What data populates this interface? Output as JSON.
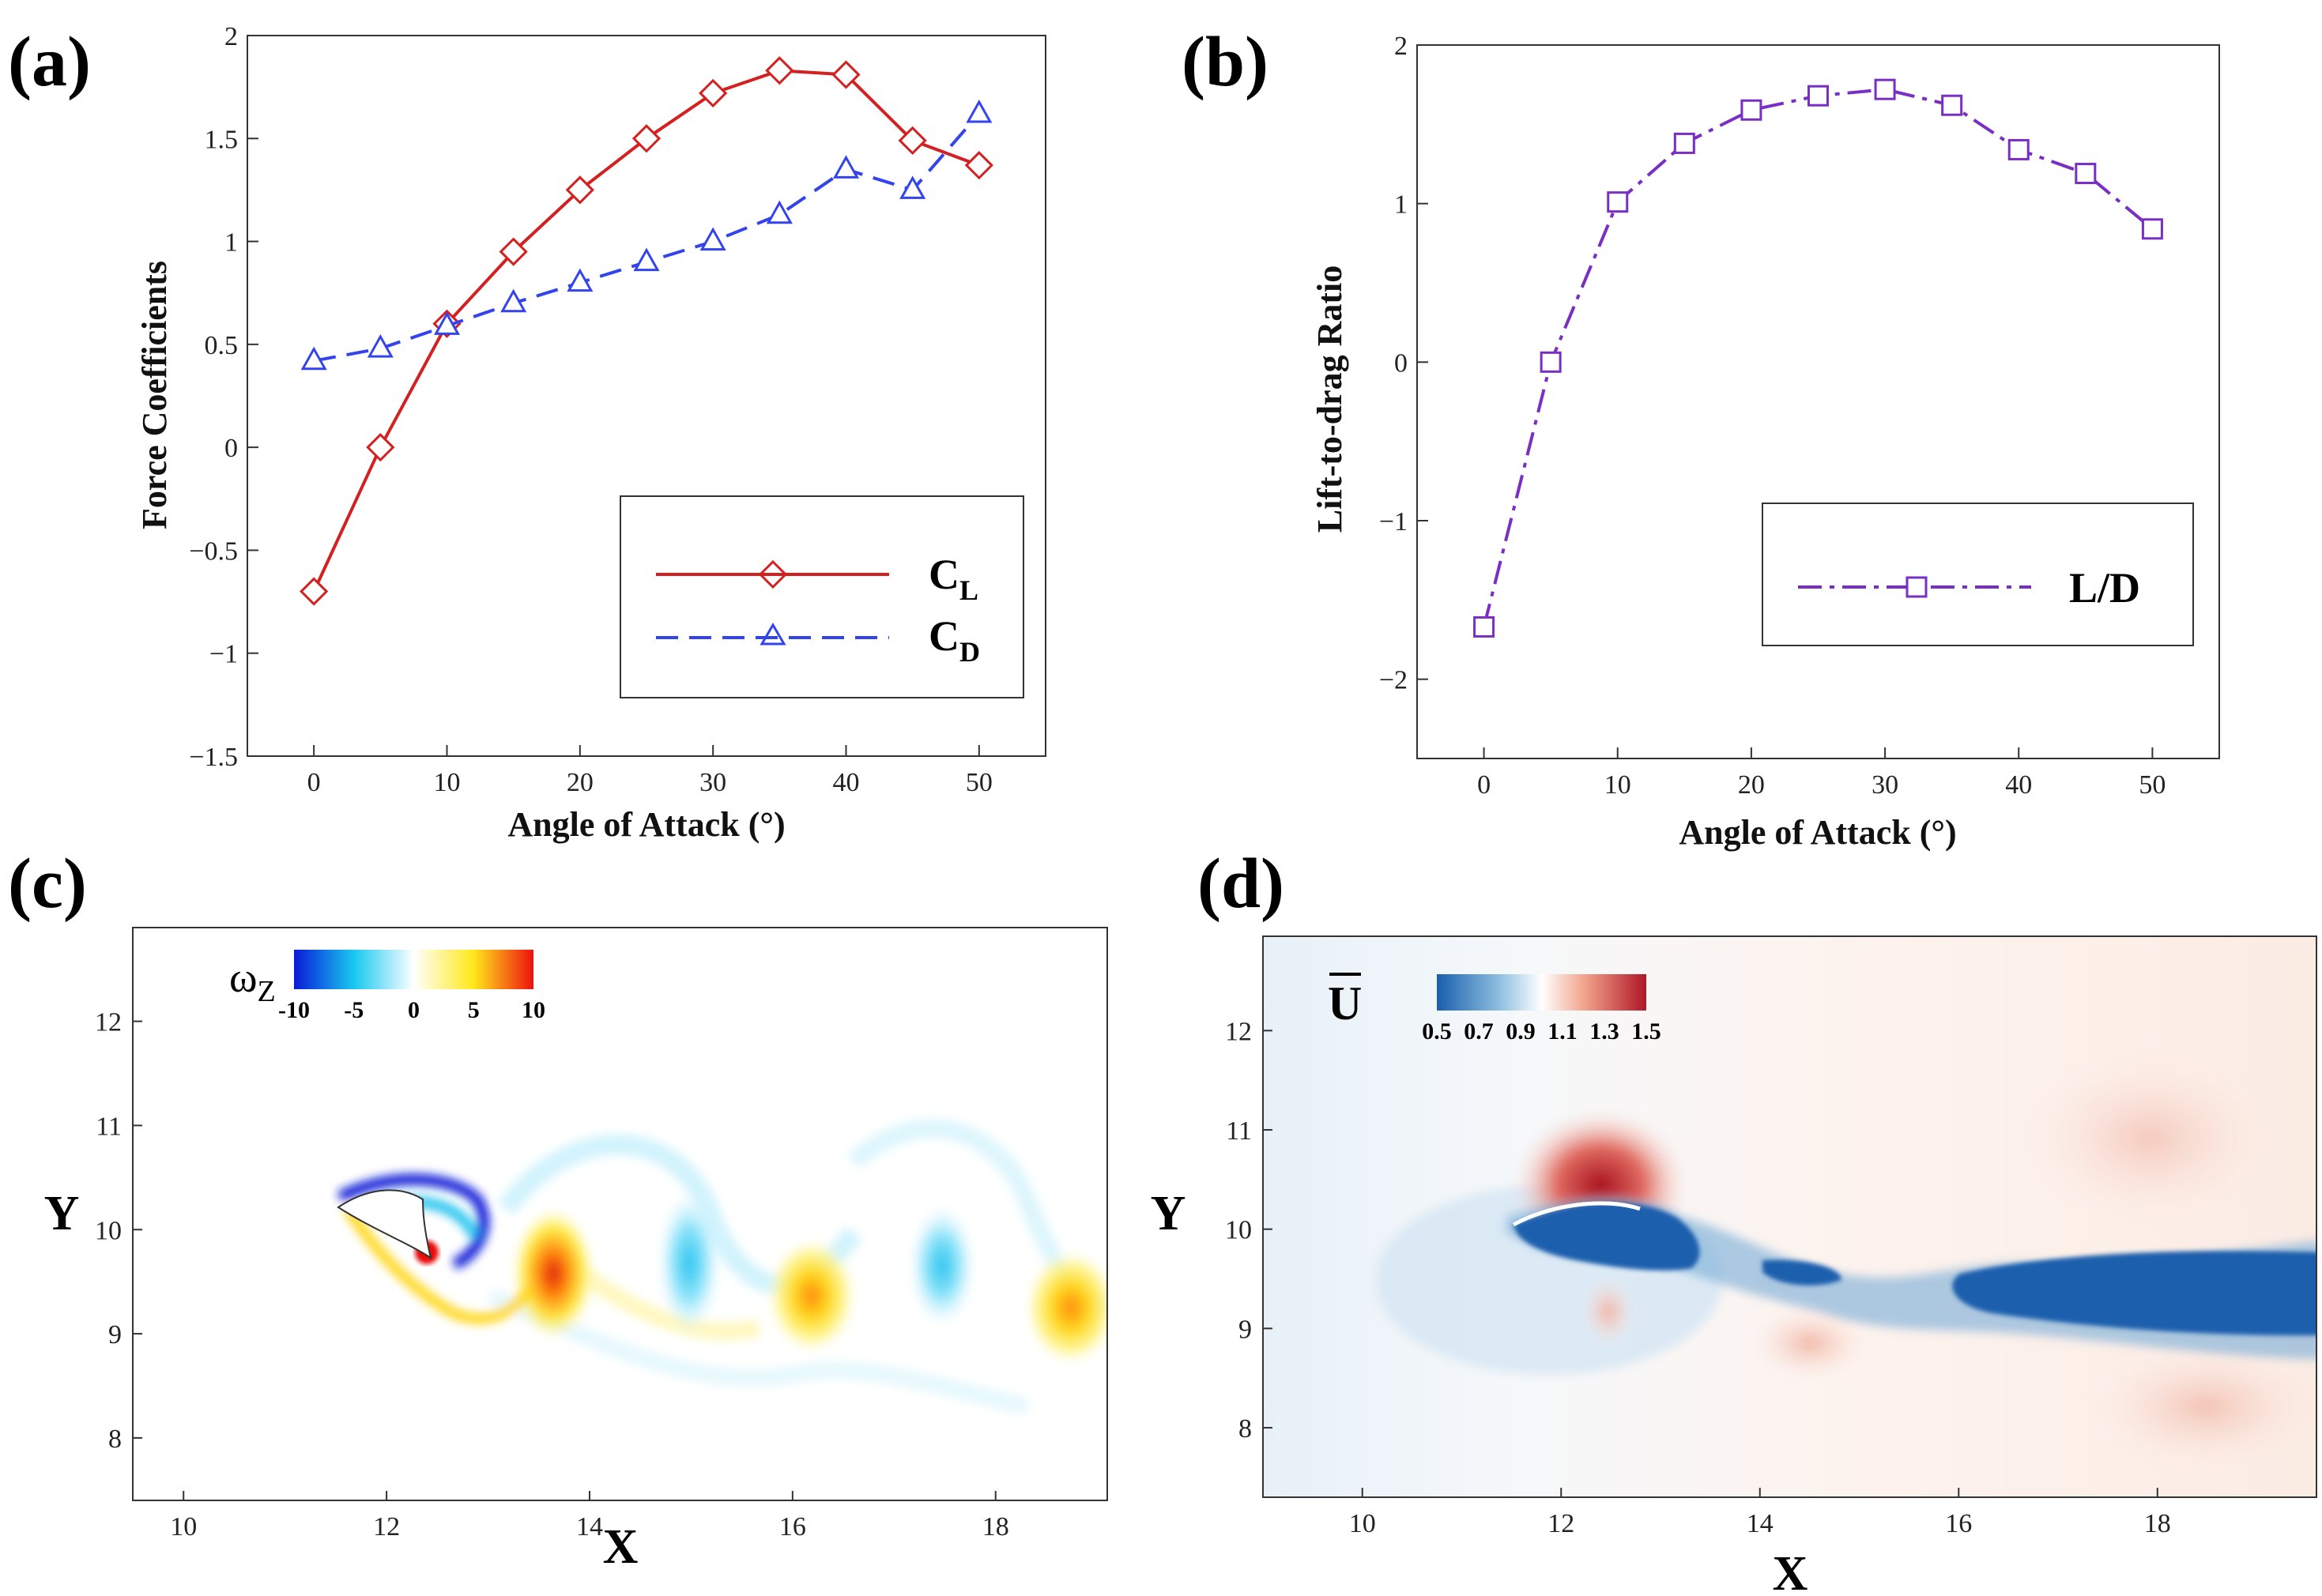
{
  "panels": {
    "a": "(a)",
    "b": "(b)",
    "c": "(c)",
    "d": "(d)"
  },
  "chart_data": [
    {
      "id": "a",
      "type": "line",
      "xlabel": "Angle of Attack (°)",
      "ylabel": "Force Coefficients",
      "xlim": [
        -5,
        55
      ],
      "ylim": [
        -1.5,
        2
      ],
      "xticks": [
        0,
        10,
        20,
        30,
        40,
        50
      ],
      "yticks": [
        -1.5,
        -1,
        -0.5,
        0,
        0.5,
        1,
        1.5,
        2
      ],
      "yticklabels": [
        "−1.5",
        "−1",
        "−0.5",
        "0",
        "0.5",
        "1",
        "1.5",
        "2"
      ],
      "x": [
        0,
        5,
        10,
        15,
        20,
        25,
        30,
        35,
        40,
        45,
        50
      ],
      "series": [
        {
          "name": "C",
          "sub": "L",
          "color": "#d42020",
          "marker": "diamond",
          "dash": "",
          "values": [
            -0.7,
            0.0,
            0.6,
            0.95,
            1.25,
            1.5,
            1.72,
            1.83,
            1.81,
            1.49,
            1.37
          ]
        },
        {
          "name": "C",
          "sub": "D",
          "color": "#3344ee",
          "marker": "triangle",
          "dash": "28 14",
          "values": [
            0.42,
            0.48,
            0.59,
            0.7,
            0.8,
            0.9,
            1.0,
            1.13,
            1.35,
            1.25,
            1.62
          ]
        }
      ]
    },
    {
      "id": "b",
      "type": "line",
      "xlabel": "Angle of Attack (°)",
      "ylabel": "Lift-to-drag Ratio",
      "xlim": [
        -5,
        55
      ],
      "ylim": [
        -2.5,
        2
      ],
      "xticks": [
        0,
        10,
        20,
        30,
        40,
        50
      ],
      "yticks": [
        -2,
        -1,
        0,
        1,
        2
      ],
      "yticklabels": [
        "−2",
        "−1",
        "0",
        "1",
        "2"
      ],
      "x": [
        0,
        5,
        10,
        15,
        20,
        25,
        30,
        35,
        40,
        45,
        50
      ],
      "series": [
        {
          "name": "L/D",
          "sub": "",
          "color": "#7a2fc4",
          "marker": "square",
          "dash": "30 10 6 10",
          "values": [
            -1.67,
            0.0,
            1.01,
            1.38,
            1.59,
            1.68,
            1.72,
            1.62,
            1.34,
            1.19,
            0.84
          ]
        }
      ]
    },
    {
      "id": "c",
      "type": "heatmap",
      "xlabel": "X",
      "ylabel": "Y",
      "xlim": [
        9.5,
        19.1
      ],
      "ylim": [
        7.4,
        12.9
      ],
      "xticks": [
        10,
        12,
        14,
        16,
        18
      ],
      "yticks": [
        8,
        9,
        10,
        11,
        12
      ],
      "colorbar": {
        "label": "ω",
        "sub": "Z",
        "ticks": [
          "-10",
          "-5",
          "0",
          "5",
          "10"
        ]
      }
    },
    {
      "id": "d",
      "type": "heatmap",
      "xlabel": "X",
      "ylabel": "Y",
      "xlim": [
        9.0,
        19.6
      ],
      "ylim": [
        7.3,
        12.95
      ],
      "xticks": [
        10,
        12,
        14,
        16,
        18
      ],
      "yticks": [
        8,
        9,
        10,
        11,
        12
      ],
      "colorbar": {
        "label": "U",
        "sub": "",
        "ticks": [
          "0.5",
          "0.7",
          "0.9",
          "1.1",
          "1.3",
          "1.5"
        ]
      }
    }
  ]
}
